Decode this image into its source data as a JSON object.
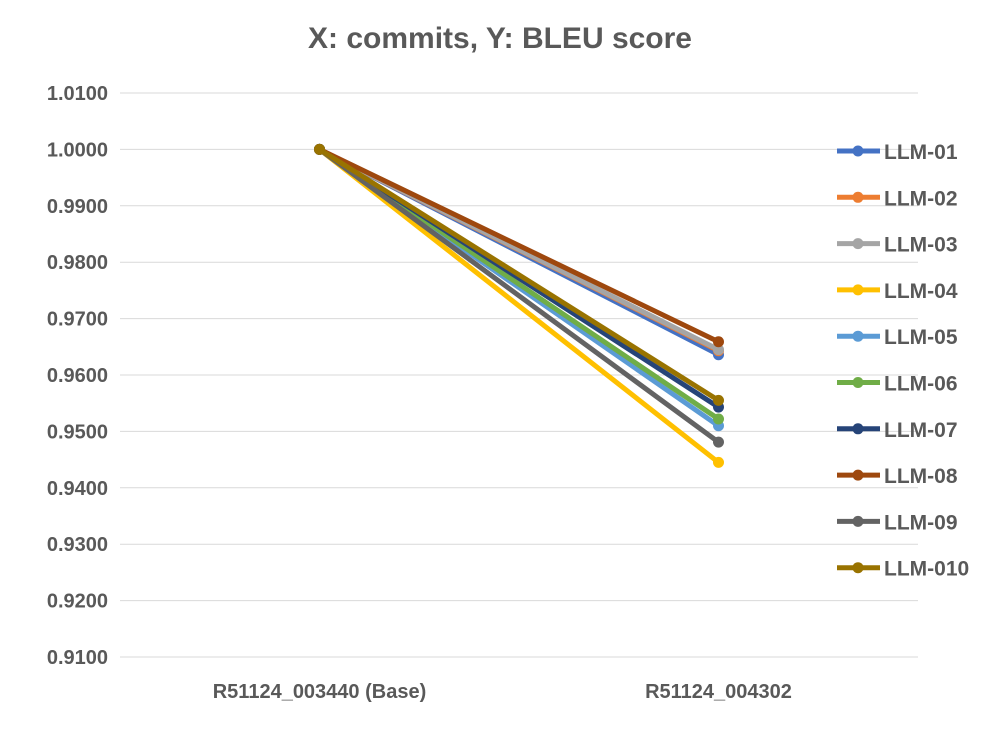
{
  "chart_data": {
    "type": "line",
    "title": "X: commits, Y: BLEU score",
    "xlabel": "",
    "ylabel": "",
    "categories": [
      "R51124_003440 (Base)",
      "R51124_004302"
    ],
    "ylim": [
      0.91,
      1.01
    ],
    "yticks": [
      "0.9100",
      "0.9200",
      "0.9300",
      "0.9400",
      "0.9500",
      "0.9600",
      "0.9700",
      "0.9800",
      "0.9900",
      "1.0000",
      "1.0100"
    ],
    "ytick_values": [
      0.91,
      0.92,
      0.93,
      0.94,
      0.95,
      0.96,
      0.97,
      0.98,
      0.99,
      1.0,
      1.01
    ],
    "grid": true,
    "legend_position": "right",
    "series": [
      {
        "name": "LLM-01",
        "color": "#4472c4",
        "values": [
          1.0,
          0.9636
        ]
      },
      {
        "name": "LLM-02",
        "color": "#ed7d31",
        "values": [
          1.0,
          0.9643
        ]
      },
      {
        "name": "LLM-03",
        "color": "#a5a5a5",
        "values": [
          1.0,
          0.9645
        ]
      },
      {
        "name": "LLM-04",
        "color": "#ffc000",
        "values": [
          1.0,
          0.9445
        ]
      },
      {
        "name": "LLM-05",
        "color": "#5b9bd5",
        "values": [
          1.0,
          0.951
        ]
      },
      {
        "name": "LLM-06",
        "color": "#70ad47",
        "values": [
          1.0,
          0.9522
        ]
      },
      {
        "name": "LLM-07",
        "color": "#264478",
        "values": [
          1.0,
          0.9543
        ]
      },
      {
        "name": "LLM-08",
        "color": "#9e480e",
        "values": [
          1.0,
          0.9659
        ]
      },
      {
        "name": "LLM-09",
        "color": "#636363",
        "values": [
          1.0,
          0.9481
        ]
      },
      {
        "name": "LLM-010",
        "color": "#997300",
        "values": [
          1.0,
          0.9555
        ]
      }
    ]
  }
}
